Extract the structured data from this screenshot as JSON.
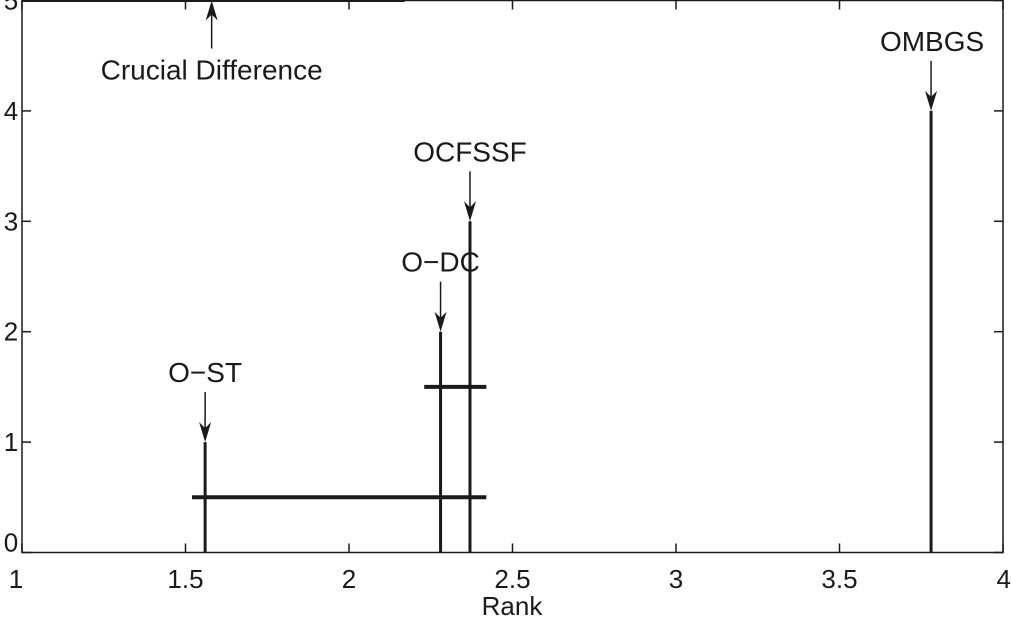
{
  "chart_data": {
    "type": "critical-difference",
    "xlabel": "Rank",
    "ylabel": "",
    "xlim": [
      1,
      4
    ],
    "ylim": [
      0,
      5
    ],
    "xticks": [
      1,
      1.5,
      2,
      2.5,
      3,
      3.5,
      4
    ],
    "xtick_labels": [
      "1",
      "1.5",
      "2",
      "2.5",
      "3",
      "3.5",
      "4"
    ],
    "yticks": [
      0,
      1,
      2,
      3,
      4,
      5
    ],
    "ytick_labels": [
      "0",
      "1",
      "2",
      "3",
      "4",
      "5"
    ],
    "grid": false,
    "methods": [
      {
        "name": "O−ST",
        "rank": 1.56,
        "height": 1
      },
      {
        "name": "O−DC",
        "rank": 2.28,
        "height": 2
      },
      {
        "name": "OCFSSF",
        "rank": 2.37,
        "height": 3
      },
      {
        "name": "OMBGS",
        "rank": 3.78,
        "height": 4
      }
    ],
    "critical_difference": {
      "label": "Crucial Difference",
      "x_start": 1.0,
      "x_end": 2.17,
      "y": 5,
      "arrow_x": 1.58
    },
    "cliques": [
      {
        "x_start": 1.52,
        "x_end": 2.42,
        "y": 0.5
      },
      {
        "x_start": 2.23,
        "x_end": 2.42,
        "y": 1.5
      }
    ]
  }
}
